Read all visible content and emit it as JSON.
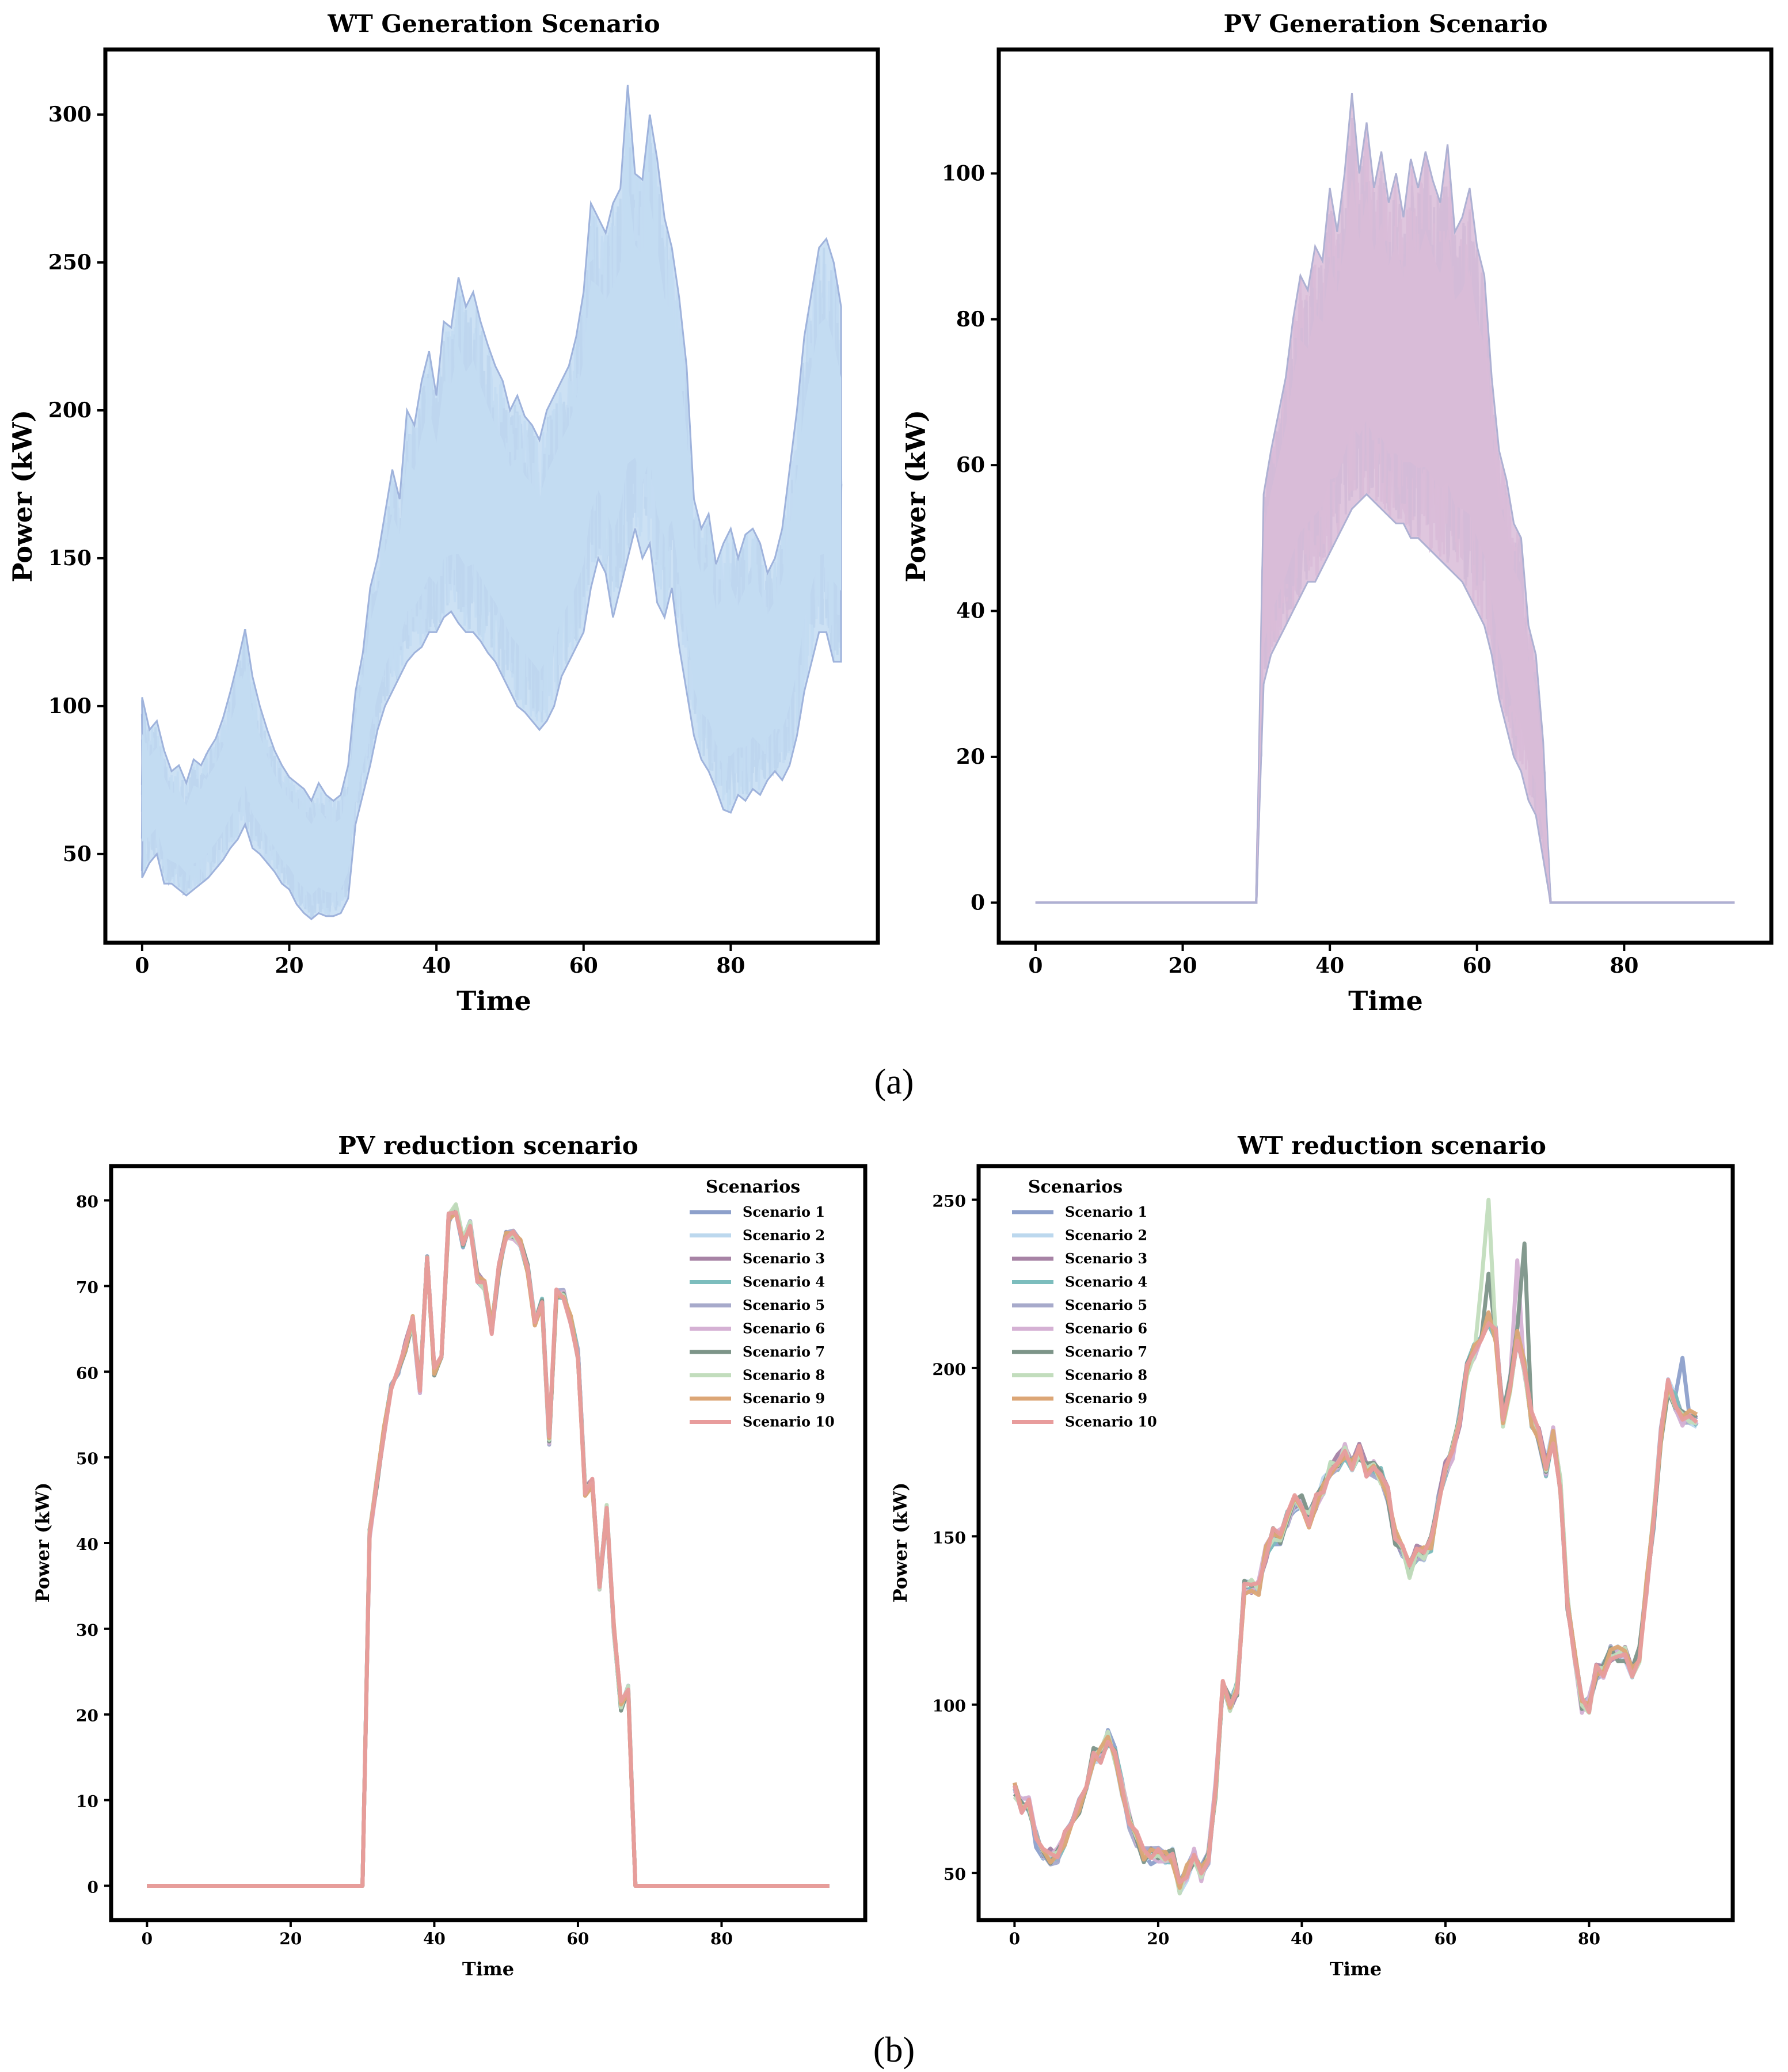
{
  "figure": {
    "label_a": "(a)",
    "label_b": "(b)"
  },
  "chart_data": [
    {
      "id": "wt-generation",
      "type": "line",
      "title": "WT Generation Scenario",
      "xlabel": "Time",
      "ylabel": "Power (kW)",
      "xlim": [
        -5,
        100
      ],
      "ylim": [
        20,
        322
      ],
      "xticks": [
        0,
        20,
        40,
        60,
        80
      ],
      "yticks": [
        50,
        100,
        150,
        200,
        250,
        300
      ],
      "band_color": "#c3dcf2",
      "band_edge_color": "#9fb3dc",
      "x": [
        0,
        1,
        2,
        3,
        4,
        5,
        6,
        7,
        8,
        9,
        10,
        11,
        12,
        13,
        14,
        15,
        16,
        17,
        18,
        19,
        20,
        21,
        22,
        23,
        24,
        25,
        26,
        27,
        28,
        29,
        30,
        31,
        32,
        33,
        34,
        35,
        36,
        37,
        38,
        39,
        40,
        41,
        42,
        43,
        44,
        45,
        46,
        47,
        48,
        49,
        50,
        51,
        52,
        53,
        54,
        55,
        56,
        57,
        58,
        59,
        60,
        61,
        62,
        63,
        64,
        65,
        66,
        67,
        68,
        69,
        70,
        71,
        72,
        73,
        74,
        75,
        76,
        77,
        78,
        79,
        80,
        81,
        82,
        83,
        84,
        85,
        86,
        87,
        88,
        89,
        90,
        91,
        92,
        93,
        94,
        95
      ],
      "upper": [
        103,
        92,
        95,
        85,
        78,
        80,
        74,
        82,
        80,
        85,
        89,
        96,
        105,
        115,
        126,
        110,
        100,
        92,
        85,
        80,
        76,
        74,
        72,
        68,
        74,
        70,
        68,
        70,
        80,
        105,
        118,
        140,
        150,
        165,
        180,
        170,
        200,
        195,
        210,
        220,
        205,
        230,
        228,
        245,
        235,
        240,
        230,
        222,
        215,
        210,
        200,
        205,
        198,
        195,
        190,
        200,
        205,
        210,
        215,
        225,
        240,
        270,
        265,
        260,
        270,
        275,
        310,
        280,
        278,
        300,
        285,
        265,
        255,
        238,
        215,
        170,
        160,
        165,
        148,
        155,
        160,
        150,
        158,
        160,
        155,
        145,
        150,
        160,
        180,
        200,
        225,
        240,
        255,
        258,
        250,
        235
      ],
      "lower": [
        42,
        47,
        50,
        40,
        40,
        38,
        36,
        38,
        40,
        42,
        45,
        48,
        52,
        55,
        60,
        52,
        50,
        47,
        44,
        40,
        38,
        33,
        30,
        28,
        30,
        29,
        29,
        30,
        35,
        60,
        70,
        80,
        92,
        100,
        105,
        110,
        115,
        118,
        120,
        125,
        125,
        130,
        132,
        128,
        125,
        125,
        122,
        118,
        115,
        110,
        105,
        100,
        98,
        95,
        92,
        95,
        100,
        110,
        115,
        120,
        125,
        140,
        150,
        145,
        130,
        140,
        150,
        160,
        150,
        155,
        135,
        130,
        140,
        120,
        105,
        90,
        82,
        78,
        72,
        65,
        64,
        70,
        68,
        72,
        70,
        75,
        78,
        75,
        80,
        90,
        105,
        115,
        125,
        125,
        115,
        115
      ]
    },
    {
      "id": "pv-generation",
      "type": "line",
      "title": "PV Generation Scenario",
      "xlabel": "Time",
      "ylabel": "Power (kW)",
      "xlim": [
        -5,
        100
      ],
      "ylim": [
        -5.5,
        117
      ],
      "xticks": [
        0,
        20,
        40,
        60,
        80
      ],
      "yticks": [
        0,
        20,
        40,
        60,
        80,
        100
      ],
      "band_color": "#d9bcd8",
      "band_edge_color": "#aeb1d3",
      "x": [
        0,
        30,
        31,
        32,
        33,
        34,
        35,
        36,
        37,
        38,
        39,
        40,
        41,
        42,
        43,
        44,
        45,
        46,
        47,
        48,
        49,
        50,
        51,
        52,
        53,
        54,
        55,
        56,
        57,
        58,
        59,
        60,
        61,
        62,
        63,
        64,
        65,
        66,
        67,
        68,
        69,
        70,
        95
      ],
      "upper": [
        0,
        0,
        56,
        62,
        67,
        72,
        80,
        86,
        84,
        90,
        88,
        98,
        92,
        100,
        111,
        100,
        107,
        98,
        103,
        96,
        100,
        94,
        102,
        98,
        103,
        99,
        96,
        104,
        92,
        94,
        98,
        90,
        86,
        72,
        62,
        58,
        52,
        50,
        38,
        34,
        22,
        0,
        0
      ],
      "lower": [
        0,
        0,
        30,
        34,
        36,
        38,
        40,
        42,
        44,
        44,
        46,
        48,
        50,
        52,
        54,
        55,
        56,
        55,
        54,
        53,
        52,
        52,
        50,
        50,
        49,
        48,
        47,
        46,
        45,
        44,
        42,
        40,
        38,
        34,
        28,
        24,
        20,
        18,
        14,
        12,
        6,
        0,
        0
      ]
    },
    {
      "id": "pv-reduction",
      "type": "line",
      "title": "PV reduction scenario",
      "xlabel": "Time",
      "ylabel": "Power (kW)",
      "xlim": [
        -5,
        100
      ],
      "ylim": [
        -4,
        84
      ],
      "xticks": [
        0,
        20,
        40,
        60,
        80
      ],
      "yticks": [
        0,
        10,
        20,
        30,
        40,
        50,
        60,
        70,
        80
      ],
      "legend_title": "Scenarios",
      "legend_position": "top-right",
      "x": [
        0,
        1,
        2,
        3,
        4,
        5,
        6,
        7,
        8,
        9,
        10,
        11,
        12,
        13,
        14,
        15,
        16,
        17,
        18,
        19,
        20,
        21,
        22,
        23,
        24,
        25,
        26,
        27,
        28,
        29,
        30,
        31,
        32,
        33,
        34,
        35,
        36,
        37,
        38,
        39,
        40,
        41,
        42,
        43,
        44,
        45,
        46,
        47,
        48,
        49,
        50,
        51,
        52,
        53,
        54,
        55,
        56,
        57,
        58,
        59,
        60,
        61,
        62,
        63,
        64,
        65,
        66,
        67,
        68,
        69,
        70,
        71,
        72,
        73,
        74,
        75,
        76,
        77,
        78,
        79,
        80,
        81,
        82,
        83,
        84,
        85,
        86,
        87,
        88,
        89,
        90,
        91,
        92,
        93,
        94,
        95
      ],
      "base": [
        0,
        0,
        0,
        0,
        0,
        0,
        0,
        0,
        0,
        0,
        0,
        0,
        0,
        0,
        0,
        0,
        0,
        0,
        0,
        0,
        0,
        0,
        0,
        0,
        0,
        0,
        0,
        0,
        0,
        0,
        0,
        41,
        47,
        53,
        58,
        60,
        63,
        66,
        58,
        73,
        60,
        62,
        78,
        79,
        75,
        77,
        71,
        70,
        65,
        72,
        76,
        76,
        75,
        72,
        66,
        68,
        52,
        69,
        69,
        66,
        62,
        46,
        47,
        35,
        44,
        30,
        21,
        23,
        0,
        0,
        0,
        0,
        0,
        0,
        0,
        0,
        0,
        0,
        0,
        0,
        0,
        0,
        0,
        0,
        0,
        0,
        0,
        0,
        0,
        0,
        0,
        0,
        0,
        0,
        0,
        0
      ],
      "series": [
        {
          "name": "Scenario 1",
          "color": "#8da0cb",
          "seed": 1
        },
        {
          "name": "Scenario 2",
          "color": "#bcd8ee",
          "seed": 2
        },
        {
          "name": "Scenario 3",
          "color": "#a783a5",
          "seed": 3
        },
        {
          "name": "Scenario 4",
          "color": "#7cbdbd",
          "seed": 4
        },
        {
          "name": "Scenario 5",
          "color": "#a7aacb",
          "seed": 5
        },
        {
          "name": "Scenario 6",
          "color": "#d5b1d4",
          "seed": 6
        },
        {
          "name": "Scenario 7",
          "color": "#7d9589",
          "seed": 7
        },
        {
          "name": "Scenario 8",
          "color": "#c2ddbd",
          "seed": 8
        },
        {
          "name": "Scenario 9",
          "color": "#dca676",
          "seed": 9
        },
        {
          "name": "Scenario 10",
          "color": "#e89c9c",
          "seed": 10
        }
      ],
      "jitter": 0.6
    },
    {
      "id": "wt-reduction",
      "type": "line",
      "title": "WT reduction scenario",
      "xlabel": "Time",
      "ylabel": "Power (kW)",
      "xlim": [
        -5,
        100
      ],
      "ylim": [
        36,
        260
      ],
      "xticks": [
        0,
        20,
        40,
        60,
        80
      ],
      "yticks": [
        50,
        100,
        150,
        200,
        250
      ],
      "legend_title": "Scenarios",
      "legend_position": "top-left",
      "x": [
        0,
        1,
        2,
        3,
        4,
        5,
        6,
        7,
        8,
        9,
        10,
        11,
        12,
        13,
        14,
        15,
        16,
        17,
        18,
        19,
        20,
        21,
        22,
        23,
        24,
        25,
        26,
        27,
        28,
        29,
        30,
        31,
        32,
        33,
        34,
        35,
        36,
        37,
        38,
        39,
        40,
        41,
        42,
        43,
        44,
        45,
        46,
        47,
        48,
        49,
        50,
        51,
        52,
        53,
        54,
        55,
        56,
        57,
        58,
        59,
        60,
        61,
        62,
        63,
        64,
        65,
        66,
        67,
        68,
        69,
        70,
        71,
        72,
        73,
        74,
        75,
        76,
        77,
        78,
        79,
        80,
        81,
        82,
        83,
        84,
        85,
        86,
        87,
        88,
        89,
        90,
        91,
        92,
        93,
        94,
        95
      ],
      "base": [
        75,
        70,
        70,
        60,
        55,
        55,
        55,
        60,
        65,
        70,
        75,
        85,
        85,
        90,
        85,
        75,
        65,
        60,
        55,
        55,
        55,
        55,
        55,
        45,
        50,
        55,
        50,
        55,
        75,
        105,
        100,
        105,
        135,
        135,
        135,
        145,
        150,
        150,
        155,
        160,
        160,
        155,
        160,
        165,
        170,
        172,
        175,
        172,
        175,
        170,
        170,
        168,
        162,
        150,
        145,
        140,
        145,
        145,
        148,
        160,
        170,
        175,
        185,
        200,
        205,
        210,
        215,
        210,
        185,
        195,
        210,
        200,
        185,
        180,
        170,
        180,
        165,
        130,
        115,
        100,
        100,
        110,
        110,
        115,
        115,
        115,
        110,
        115,
        135,
        155,
        180,
        195,
        190,
        185,
        185,
        185
      ],
      "series": [
        {
          "name": "Scenario 1",
          "color": "#8da0cb",
          "seed": 1
        },
        {
          "name": "Scenario 2",
          "color": "#bcd8ee",
          "seed": 2
        },
        {
          "name": "Scenario 3",
          "color": "#a783a5",
          "seed": 3
        },
        {
          "name": "Scenario 4",
          "color": "#7cbdbd",
          "seed": 4
        },
        {
          "name": "Scenario 5",
          "color": "#a7aacb",
          "seed": 5
        },
        {
          "name": "Scenario 6",
          "color": "#d5b1d4",
          "seed": 6
        },
        {
          "name": "Scenario 7",
          "color": "#7d9589",
          "seed": 7
        },
        {
          "name": "Scenario 8",
          "color": "#c2ddbd",
          "seed": 8
        },
        {
          "name": "Scenario 9",
          "color": "#dca676",
          "seed": 9
        },
        {
          "name": "Scenario 10",
          "color": "#e89c9c",
          "seed": 10
        }
      ],
      "jitter": 2.5,
      "peak_overrides": {
        "Scenario 8": {
          "66": 250,
          "65": 225
        },
        "Scenario 7": {
          "71": 237,
          "66": 228
        },
        "Scenario 6": {
          "70": 232
        },
        "Scenario 1": {
          "93": 203
        }
      }
    }
  ]
}
